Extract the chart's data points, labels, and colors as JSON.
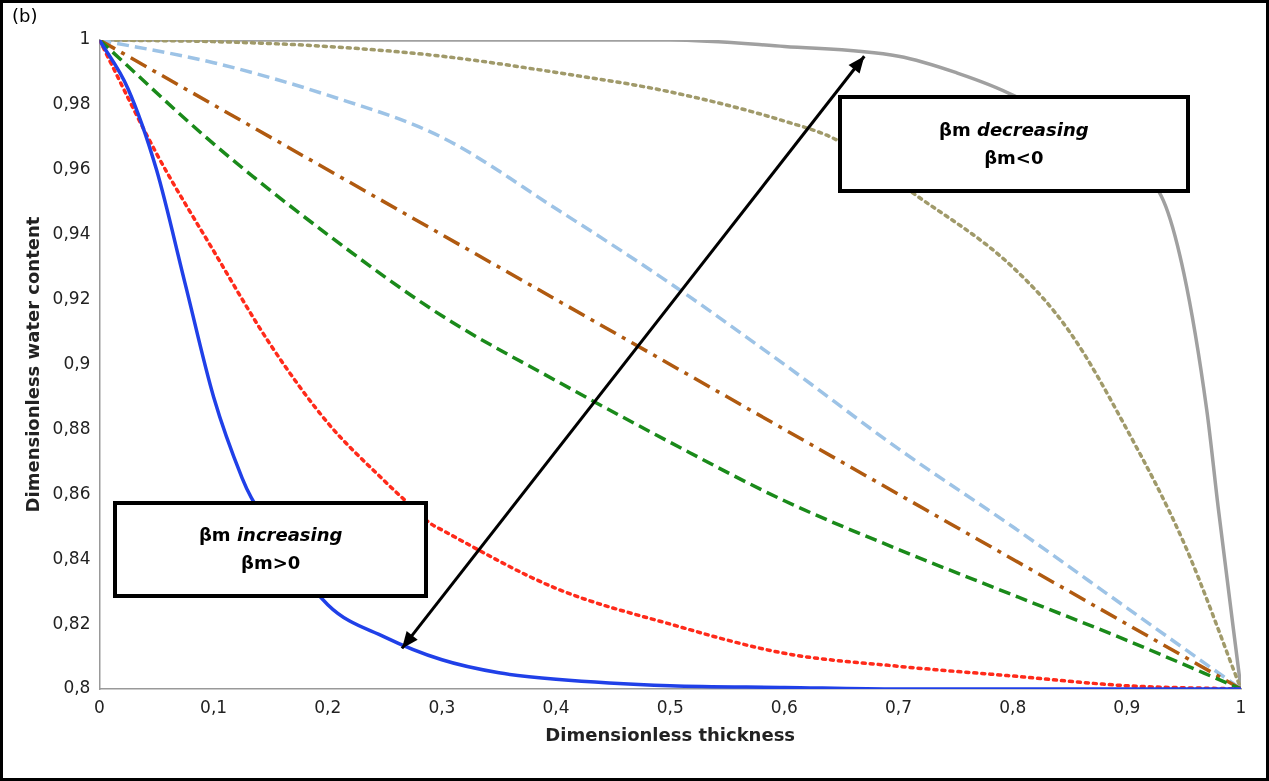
{
  "chart_data": {
    "type": "line",
    "xlabel": "Dimensionless thickness",
    "ylabel": "Dimensionless water content",
    "annotations": [
      "(b)",
      "βm increasing\nβm>0",
      "βm decreasing\nβm<0"
    ],
    "xlim": [
      0,
      1
    ],
    "ylim": [
      0.8,
      1
    ],
    "xticks": [
      0,
      {
        "value": 0.1,
        "label": "0,1"
      },
      {
        "value": 0.2,
        "label": "0,2"
      },
      {
        "value": 0.3,
        "label": "0,3"
      },
      {
        "value": 0.4,
        "label": "0,4"
      },
      {
        "value": 0.5,
        "label": "0,5"
      },
      {
        "value": 0.6,
        "label": "0,6"
      },
      {
        "value": 0.7,
        "label": "0,7"
      },
      {
        "value": 0.8,
        "label": "0,8"
      },
      {
        "value": 0.9,
        "label": "0,9"
      },
      1
    ],
    "yticks": [
      {
        "value": 0.8,
        "label": "0,8"
      },
      {
        "value": 0.82,
        "label": "0,82"
      },
      {
        "value": 0.84,
        "label": "0,84"
      },
      {
        "value": 0.86,
        "label": "0,86"
      },
      {
        "value": 0.88,
        "label": "0,88"
      },
      {
        "value": 0.9,
        "label": "0,9"
      },
      {
        "value": 0.92,
        "label": "0,92"
      },
      {
        "value": 0.94,
        "label": "0,94"
      },
      {
        "value": 0.96,
        "label": "0,96"
      },
      {
        "value": 0.98,
        "label": "0,98"
      },
      1
    ],
    "grid": false,
    "legend": false,
    "marker": "none",
    "series": [
      {
        "color": "#2040e8",
        "line_style": "solid",
        "x": [
          0,
          0.025,
          0.05,
          0.075,
          0.1,
          0.125,
          0.133,
          0.2,
          0.25,
          0.3,
          0.35,
          0.4,
          0.5,
          0.6,
          0.7,
          1
        ],
        "values": [
          1,
          0.985,
          0.96,
          0.925,
          0.89,
          0.865,
          0.859,
          0.826,
          0.816,
          0.809,
          0.805,
          0.803,
          0.801,
          0.8005,
          0.8,
          0.8
        ]
      },
      {
        "color": "#ff2a1a",
        "line_style": "dotted",
        "x": [
          0,
          0.05,
          0.1,
          0.15,
          0.2,
          0.25,
          0.265,
          0.29,
          0.3,
          0.4,
          0.5,
          0.6,
          0.7,
          0.8,
          0.9,
          1
        ],
        "values": [
          1,
          0.965,
          0.935,
          0.906,
          0.882,
          0.864,
          0.859,
          0.851,
          0.849,
          0.831,
          0.82,
          0.811,
          0.807,
          0.804,
          0.801,
          0.8
        ]
      },
      {
        "color": "#1a8a1a",
        "line_style": "dashed",
        "x": [
          0,
          0.1,
          0.2,
          0.3,
          0.4,
          0.5,
          0.6,
          0.7,
          0.8,
          0.9,
          1
        ],
        "values": [
          1,
          0.968,
          0.94,
          0.915,
          0.895,
          0.876,
          0.858,
          0.843,
          0.829,
          0.815,
          0.8
        ]
      },
      {
        "color": "#b05a10",
        "line_style": "dashdot",
        "x": [
          0,
          1
        ],
        "values": [
          1,
          0.8
        ]
      },
      {
        "color": "#9dc3e6",
        "line_style": "dashed",
        "x": [
          0,
          0.1,
          0.2,
          0.3,
          0.4,
          0.5,
          0.6,
          0.7,
          0.8,
          0.9,
          1
        ],
        "values": [
          1,
          0.993,
          0.983,
          0.97,
          0.948,
          0.925,
          0.9,
          0.874,
          0.85,
          0.825,
          0.8
        ]
      },
      {
        "color": "#a09a6a",
        "line_style": "dotted",
        "x": [
          0,
          0.1,
          0.2,
          0.3,
          0.4,
          0.5,
          0.6,
          0.647,
          0.712,
          0.8,
          0.85,
          0.9,
          0.95,
          1
        ],
        "values": [
          1,
          0.9995,
          0.998,
          0.995,
          0.99,
          0.984,
          0.975,
          0.969,
          0.953,
          0.93,
          0.91,
          0.88,
          0.845,
          0.8
        ]
      },
      {
        "color": "#a0a0a0",
        "line_style": "solid",
        "x": [
          0,
          0.5,
          0.6,
          0.7,
          0.75,
          0.8,
          0.93,
          0.95,
          0.97,
          0.98,
          1
        ],
        "values": [
          1,
          1,
          0.998,
          0.995,
          0.99,
          0.983,
          0.952,
          0.928,
          0.886,
          0.856,
          0.8
        ]
      }
    ]
  }
}
